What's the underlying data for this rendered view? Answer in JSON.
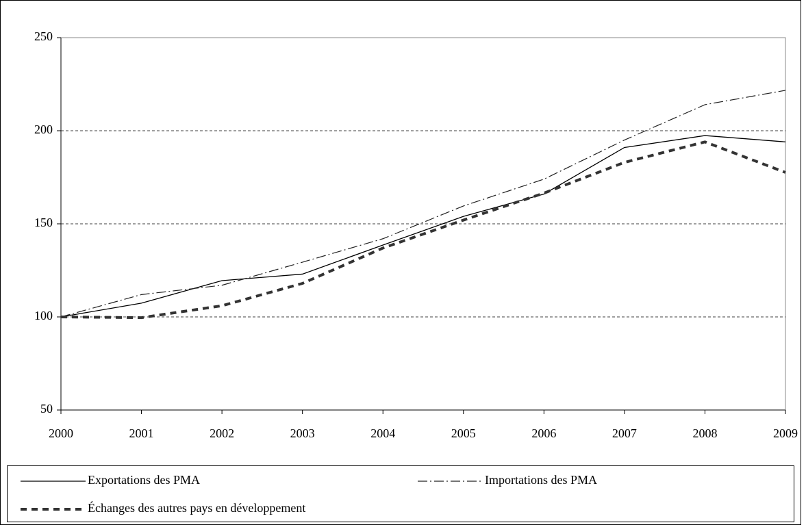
{
  "chart_data": {
    "type": "line",
    "x": [
      2000,
      2001,
      2002,
      2003,
      2004,
      2005,
      2006,
      2007,
      2008,
      2009
    ],
    "xlim": [
      2000,
      2009
    ],
    "xticks": [
      2000,
      2001,
      2002,
      2003,
      2004,
      2005,
      2006,
      2007,
      2008,
      2009
    ],
    "ylim": [
      50,
      250
    ],
    "yticks": [
      50,
      100,
      150,
      200,
      250
    ],
    "grid": true,
    "legend": "bottom",
    "series": [
      {
        "name": "Exportations des PMA",
        "color": "#000000",
        "line_style": "solid",
        "values": [
          100,
          107.4,
          119.5,
          123,
          138.6,
          154,
          166,
          191,
          197.4,
          194
        ]
      },
      {
        "name": "Importations des PMA",
        "color": "#222222",
        "line_style": "dashdot",
        "values": [
          100,
          112,
          117,
          129.4,
          142,
          159.6,
          174,
          195,
          214,
          221.7
        ]
      },
      {
        "name": "Échanges des autres pays en développement",
        "color": "#333333",
        "line_style": "dashed",
        "values": [
          100,
          99.6,
          106,
          118,
          137,
          152,
          166.5,
          183,
          194,
          177.6
        ]
      }
    ]
  }
}
